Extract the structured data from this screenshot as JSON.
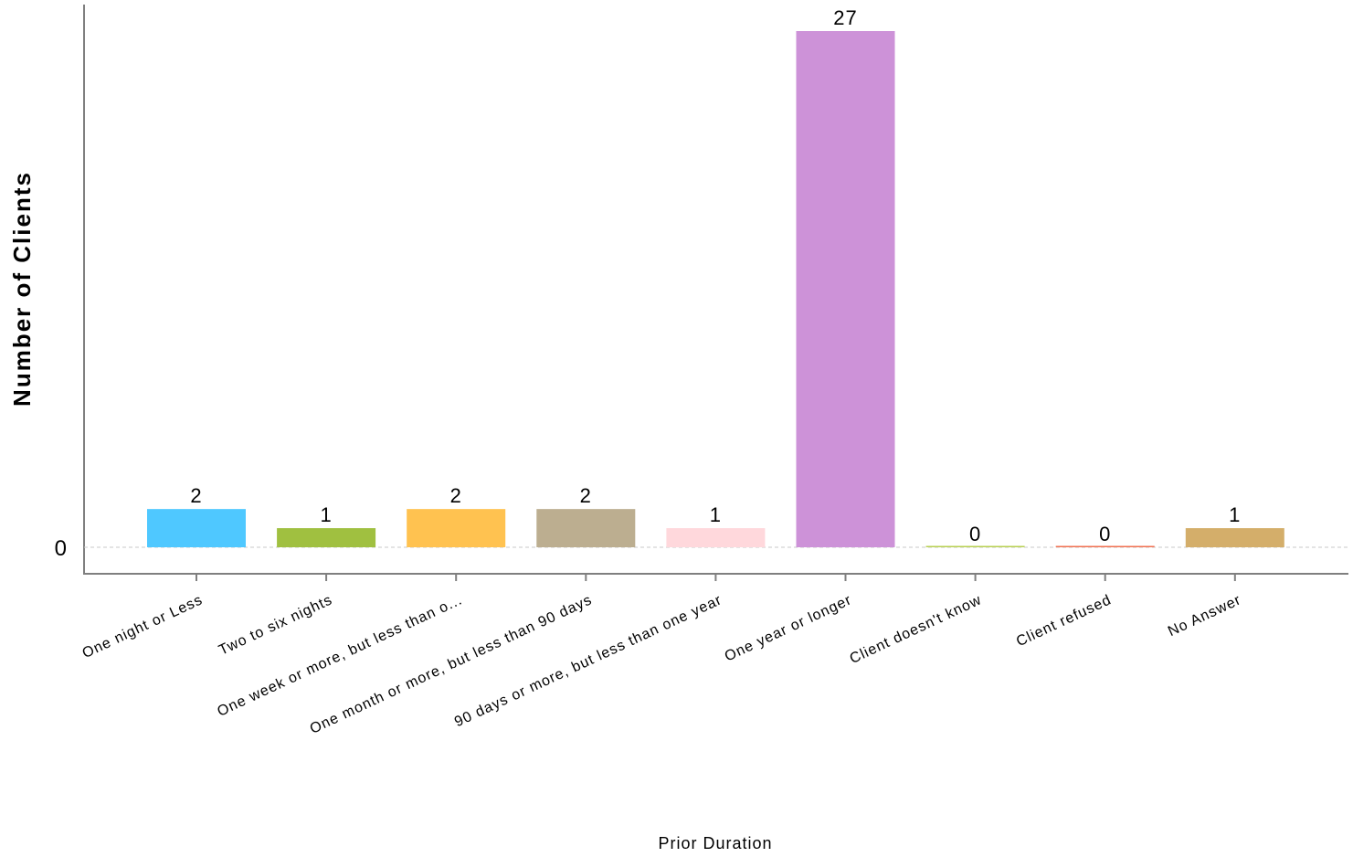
{
  "chart_data": {
    "type": "bar",
    "title": "",
    "xlabel": "Prior Duration",
    "ylabel": "Number of Clients",
    "categories": [
      "One night or Less",
      "Two to six nights",
      "One week or more, but less than o...",
      "One month or more, but less than 90 days",
      "90 days or more, but less than one year",
      "One year or longer",
      "Client doesn't know",
      "Client refused",
      "No Answer"
    ],
    "values": [
      2,
      1,
      2,
      2,
      1,
      27,
      0,
      0,
      1
    ],
    "colors": [
      "#4FC8FF",
      "#A0C040",
      "#FFC250",
      "#BCAE90",
      "#FFD8DC",
      "#CD92D8",
      "#B8D050",
      "#F07050",
      "#D4AE6A"
    ],
    "yticks": [
      0
    ],
    "ylim": [
      0,
      29
    ],
    "grid": false,
    "legend": "none"
  }
}
